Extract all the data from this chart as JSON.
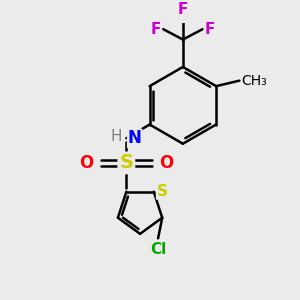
{
  "background_color": "#ebebeb",
  "atom_colors": {
    "C": "#000000",
    "H": "#808080",
    "N": "#0000ff",
    "O": "#ff0000",
    "S": "#cccc00",
    "Cl": "#00aa00",
    "F": "#cc00cc"
  },
  "bond_color": "#000000",
  "bond_width": 1.8,
  "font_size": 11
}
